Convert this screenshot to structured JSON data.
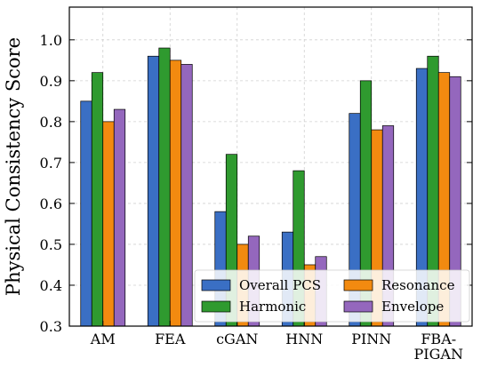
{
  "chart_data": {
    "type": "bar",
    "title": "",
    "xlabel": "",
    "ylabel": "Physical Consistency Score",
    "ylim": [
      0.3,
      1.08
    ],
    "yticks": [
      "0.3",
      "0.4",
      "0.5",
      "0.6",
      "0.7",
      "0.8",
      "0.9",
      "1.0"
    ],
    "grid": true,
    "legend": "lower-right, two columns",
    "categories": [
      [
        "AM"
      ],
      [
        "FEA"
      ],
      [
        "cGAN"
      ],
      [
        "HNN"
      ],
      [
        "PINN"
      ],
      [
        "FBA-",
        "PIGAN"
      ]
    ],
    "series": [
      {
        "name": "Overall PCS",
        "color": "#3a6fc4",
        "values": [
          0.85,
          0.96,
          0.58,
          0.53,
          0.82,
          0.93
        ]
      },
      {
        "name": "Harmonic",
        "color": "#2f9a2f",
        "values": [
          0.92,
          0.98,
          0.72,
          0.68,
          0.9,
          0.96
        ]
      },
      {
        "name": "Resonance",
        "color": "#f28a10",
        "values": [
          0.8,
          0.95,
          0.5,
          0.45,
          0.78,
          0.92
        ]
      },
      {
        "name": "Envelope",
        "color": "#9467bd",
        "values": [
          0.83,
          0.94,
          0.52,
          0.47,
          0.79,
          0.91
        ]
      }
    ],
    "legend_order": [
      0,
      1,
      2,
      3
    ]
  }
}
